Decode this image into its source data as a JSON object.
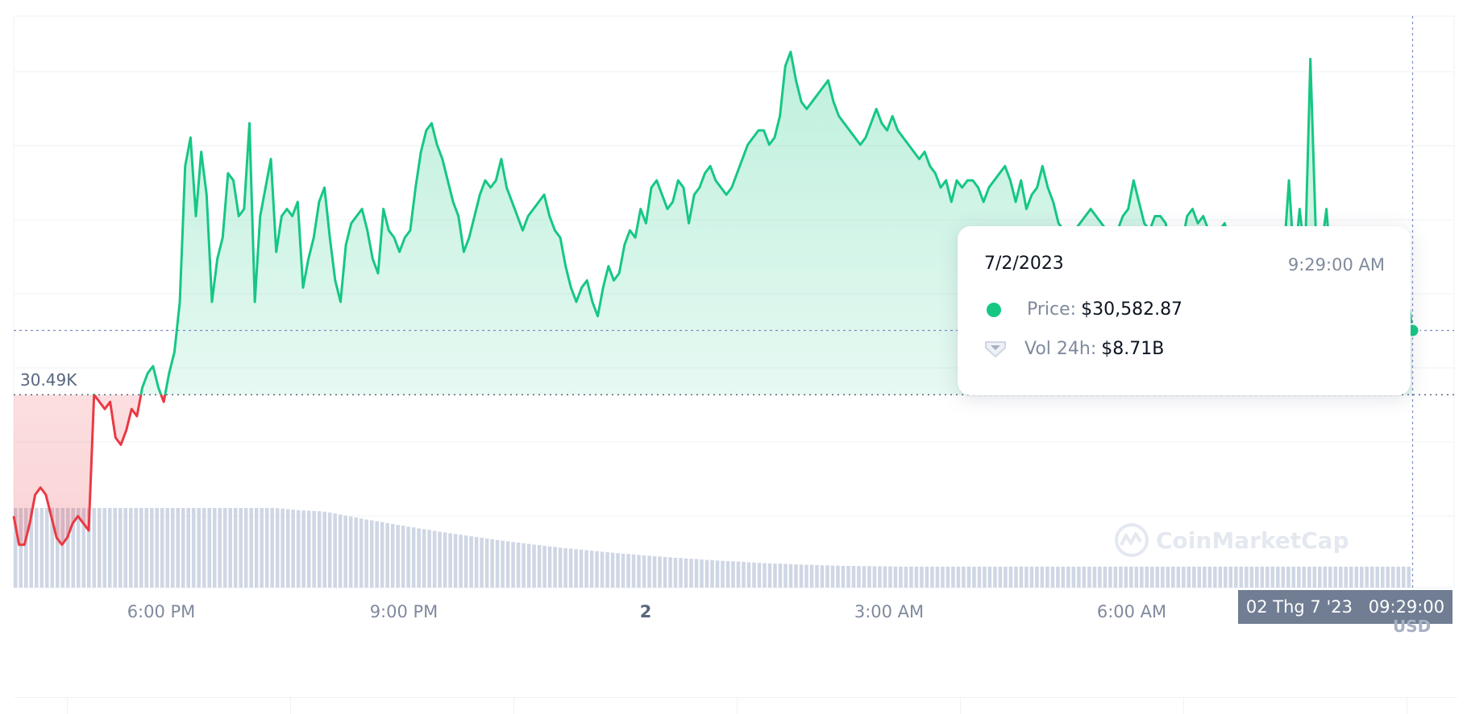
{
  "chart_data": {
    "type": "line",
    "series": [
      {
        "values": [
          30.32,
          30.28,
          30.28,
          30.31,
          30.35,
          30.36,
          30.35,
          30.32,
          30.29,
          30.28,
          30.29,
          30.31,
          30.32,
          30.31,
          30.3,
          30.49,
          30.48,
          30.47,
          30.48,
          30.43,
          30.42,
          30.44,
          30.47,
          30.46,
          30.5,
          30.52,
          30.53,
          30.5,
          30.48,
          30.52,
          30.55,
          30.62,
          30.81,
          30.85,
          30.74,
          30.83,
          30.77,
          30.62,
          30.68,
          30.71,
          30.8,
          30.79,
          30.74,
          30.75,
          30.87,
          30.62,
          30.74,
          30.78,
          30.82,
          30.69,
          30.74,
          30.75,
          30.74,
          30.76,
          30.64,
          30.68,
          30.71,
          30.76,
          30.78,
          30.71,
          30.65,
          30.62,
          30.7,
          30.73,
          30.74,
          30.75,
          30.72,
          30.68,
          30.66,
          30.75,
          30.72,
          30.71,
          30.69,
          30.71,
          30.72,
          30.78,
          30.83,
          30.86,
          30.87,
          30.84,
          30.82,
          30.79,
          30.76,
          30.74,
          30.69,
          30.71,
          30.74,
          30.77,
          30.79,
          30.78,
          30.79,
          30.82,
          30.78,
          30.76,
          30.74,
          30.72,
          30.74,
          30.75,
          30.76,
          30.77,
          30.74,
          30.72,
          30.71,
          30.67,
          30.64,
          30.62,
          30.64,
          30.65,
          30.62,
          30.6,
          30.64,
          30.67,
          30.65,
          30.66,
          30.7,
          30.72,
          30.71,
          30.75,
          30.73,
          30.78,
          30.79,
          30.77,
          30.75,
          30.76,
          30.79,
          30.78,
          30.73,
          30.77,
          30.78,
          30.8,
          30.81,
          30.79,
          30.78,
          30.77,
          30.78,
          30.8,
          30.82,
          30.84,
          30.85,
          30.86,
          30.86,
          30.84,
          30.85,
          30.88,
          30.95,
          30.97,
          30.93,
          30.9,
          30.89,
          30.9,
          30.91,
          30.92,
          30.93,
          30.9,
          30.88,
          30.87,
          30.86,
          30.85,
          30.84,
          30.85,
          30.87,
          30.89,
          30.87,
          30.86,
          30.88,
          30.86,
          30.85,
          30.84,
          30.83,
          30.82,
          30.83,
          30.81,
          30.8,
          30.78,
          30.79,
          30.76,
          30.79,
          30.78,
          30.79,
          30.79,
          30.78,
          30.76,
          30.78,
          30.79,
          30.8,
          30.81,
          30.79,
          30.76,
          30.79,
          30.75,
          30.77,
          30.78,
          30.81,
          30.78,
          30.76,
          30.73,
          30.72,
          30.71,
          30.72,
          30.73,
          30.74,
          30.75,
          30.74,
          30.73,
          30.72,
          30.71,
          30.72,
          30.74,
          30.75,
          30.79,
          30.76,
          30.73,
          30.72,
          30.74,
          30.74,
          30.73,
          30.68,
          30.69,
          30.7,
          30.74,
          30.75,
          30.73,
          30.74,
          30.72,
          30.7,
          30.72,
          30.73,
          30.7,
          30.68,
          30.65,
          30.67,
          30.63,
          30.67,
          30.69,
          30.65,
          30.66,
          30.72,
          30.68,
          30.79,
          30.67,
          30.75,
          30.68,
          30.96,
          30.72,
          30.69,
          30.75,
          30.65,
          30.68,
          30.66,
          30.64,
          30.67,
          30.68,
          30.69,
          30.66,
          30.63,
          30.64,
          30.65,
          30.68,
          30.63,
          30.61,
          30.64,
          30.58
        ]
      }
    ],
    "volume": [
      31.5,
      31.5,
      31.5,
      31.5,
      31.5,
      31.5,
      31.5,
      31.5,
      31.5,
      31.5,
      31.5,
      31.5,
      31.5,
      31.5,
      31.5,
      31.5,
      31.5,
      31.5,
      31.5,
      31.5,
      31.5,
      31.5,
      31.5,
      31.5,
      31.5,
      31.5,
      31.5,
      31.5,
      31.5,
      31.5,
      31.5,
      31.5,
      31.5,
      31.5,
      31.5,
      31.5,
      31.5,
      31.5,
      31.5,
      31.5,
      31.5,
      31.5,
      31.5,
      31.5,
      31.5,
      31.5,
      31.5,
      31.5,
      31.5,
      31.5,
      31.4,
      31.2,
      31.0,
      30.8,
      30.6,
      30.5,
      30.4,
      30.3,
      30.2,
      30.0,
      29.7,
      29.3,
      28.9,
      28.5,
      28.1,
      27.7,
      27.3,
      26.9,
      26.6,
      26.2,
      25.9,
      25.5,
      25.2,
      24.8,
      24.5,
      24.1,
      23.8,
      23.4,
      23.1,
      22.8,
      22.4,
      22.1,
      21.8,
      21.5,
      21.2,
      20.9,
      20.6,
      20.3,
      20.0,
      19.7,
      19.4,
      19.1,
      18.8,
      18.6,
      18.3,
      18.0,
      17.8,
      17.5,
      17.3,
      17.0,
      16.8,
      16.5,
      16.3,
      16.1,
      15.8,
      15.6,
      15.4,
      15.2,
      15.0,
      14.8,
      14.6,
      14.4,
      14.2,
      14.0,
      13.8,
      13.6,
      13.4,
      13.3,
      13.1,
      12.9,
      12.7,
      12.6,
      12.4,
      12.3,
      12.1,
      12.0,
      11.8,
      11.7,
      11.5,
      11.4,
      11.3,
      11.1,
      11.0,
      10.9,
      10.7,
      10.6,
      10.5,
      10.4,
      10.3,
      10.2,
      10.0,
      9.9,
      9.8,
      9.7,
      9.6,
      9.5,
      9.5,
      9.4,
      9.3,
      9.2,
      9.1,
      9.0,
      9.0,
      8.9,
      8.8,
      8.8,
      8.7,
      8.7,
      8.6,
      8.6,
      8.6,
      8.5,
      8.5,
      8.5,
      8.4,
      8.4,
      8.4,
      8.4,
      8.3,
      8.3,
      8.3,
      8.3,
      8.3,
      8.3,
      8.3,
      8.3,
      8.3,
      8.3,
      8.3,
      8.3,
      8.3,
      8.3,
      8.3,
      8.3,
      8.3,
      8.3,
      8.3,
      8.3,
      8.3,
      8.3,
      8.3,
      8.3,
      8.3,
      8.3,
      8.3,
      8.3,
      8.3,
      8.3,
      8.3,
      8.3,
      8.3,
      8.3,
      8.3,
      8.3,
      8.3,
      8.3,
      8.3,
      8.3,
      8.3,
      8.3,
      8.3,
      8.3,
      8.3,
      8.3,
      8.3,
      8.3,
      8.3,
      8.3,
      8.3,
      8.3,
      8.3,
      8.3,
      8.3,
      8.3,
      8.3,
      8.3,
      8.3,
      8.3,
      8.3,
      8.3,
      8.3,
      8.3,
      8.3,
      8.3,
      8.3,
      8.3,
      8.3,
      8.3,
      8.3,
      8.3,
      8.3,
      8.3,
      8.3,
      8.3,
      8.3,
      8.3,
      8.3,
      8.3,
      8.3,
      8.3,
      8.3,
      8.3,
      8.3,
      8.3,
      8.3,
      8.3,
      8.3,
      8.3,
      8.3,
      8.3,
      8.3,
      8.3,
      8.3,
      8.3,
      8.3,
      8.3,
      8.3
    ],
    "baseline": 30.49,
    "baseline_label": "30.49K",
    "current_value": 30.58,
    "ylim": [
      30.22,
      31.02
    ],
    "x_ticks": [
      "6:00 PM",
      "9:00 PM",
      "2",
      "3:00 AM",
      "6:00 AM"
    ],
    "grid": true,
    "colors": {
      "up": "#16c784",
      "down": "#ea3943",
      "volume": "#cfd6e4"
    }
  },
  "tooltip": {
    "date": "7/2/2023",
    "time": "9:29:00 AM",
    "price_label": "Price:",
    "price_value": "$30,582.87",
    "volume_label": "Vol 24h:",
    "volume_value": "$8.71B"
  },
  "cursor": {
    "date_label": "02 Thg 7 '23",
    "time_label": "09:29:00"
  },
  "currency": "USD",
  "watermark": "CoinMarketCap"
}
